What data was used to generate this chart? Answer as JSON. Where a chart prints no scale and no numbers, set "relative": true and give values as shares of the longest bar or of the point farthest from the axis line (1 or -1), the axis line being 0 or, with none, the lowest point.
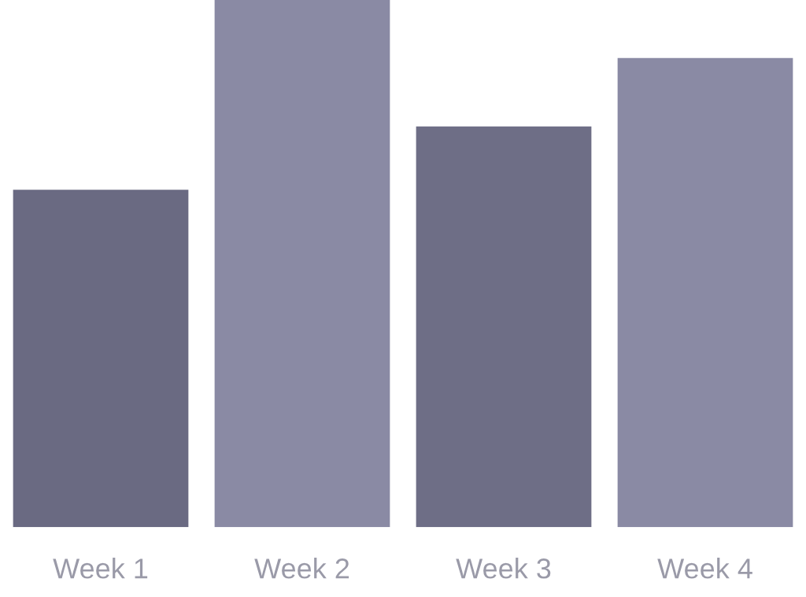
{
  "chart_data": {
    "type": "bar",
    "relative": true,
    "categories": [
      "Week 1",
      "Week 2",
      "Week 3",
      "Week 4"
    ],
    "values": [
      0.64,
      1,
      0.76,
      0.89
    ],
    "colors": [
      "#6a6a82",
      "#8a8aa4",
      "#6e6e86",
      "#8a8aa4"
    ],
    "grid": false
  }
}
